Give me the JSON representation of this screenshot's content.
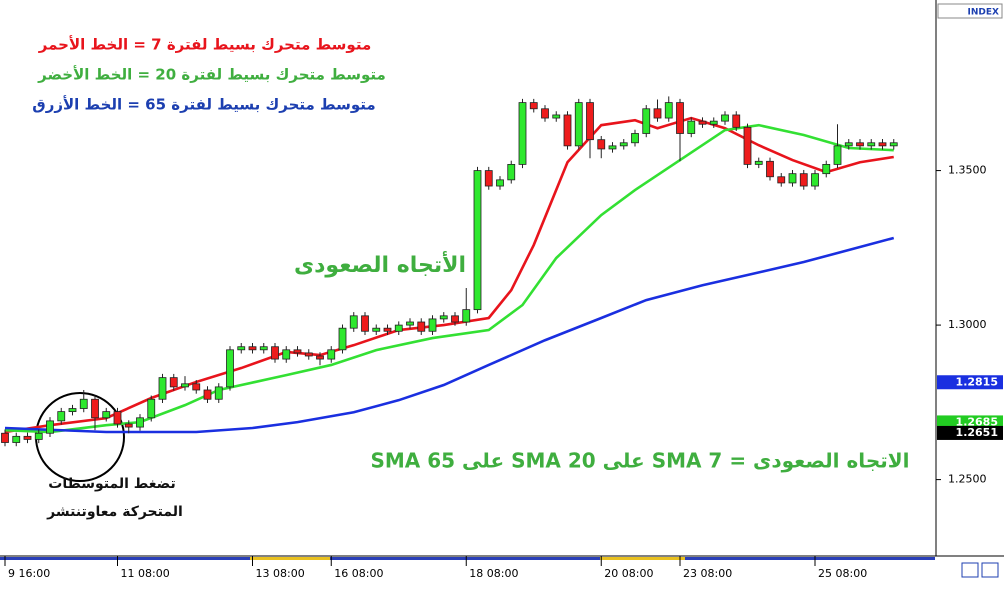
{
  "chart_data": {
    "type": "candlestick",
    "index_label": "INDEX",
    "annotations": [
      {
        "text": "متوسط متحرك بسيط لفترة 7 = الخط الأحمر",
        "color": "#e8141c"
      },
      {
        "text": "متوسط متحرك بسيط لفترة 20 = الخط الأخضر",
        "color": "#3fae3f"
      },
      {
        "text": "متوسط متحرك بسيط لفترة 65 = الخط الأزرق",
        "color": "#1c3fb0"
      },
      {
        "text": "الأتجاه الصعودى",
        "color": "#3fae3f"
      },
      {
        "text": "الاتجاه الصعودى = SMA 7 على SMA 20 على SMA 65",
        "color": "#3fae3f"
      },
      {
        "text": "تضغط المتوسطات",
        "color": "#111111"
      },
      {
        "text": "المتحركة معاوتنتشر",
        "color": "#111111"
      }
    ],
    "categories": [
      "9 16:00",
      null,
      null,
      null,
      null,
      null,
      null,
      null,
      null,
      null,
      "11 08:00",
      null,
      null,
      null,
      null,
      null,
      null,
      null,
      null,
      null,
      null,
      null,
      "13 08:00",
      null,
      null,
      null,
      null,
      null,
      null,
      "16 08:00",
      null,
      null,
      null,
      null,
      null,
      null,
      null,
      null,
      null,
      null,
      null,
      "18 08:00",
      null,
      null,
      null,
      null,
      null,
      null,
      null,
      null,
      null,
      null,
      null,
      "20 08:00",
      null,
      null,
      null,
      null,
      null,
      null,
      "23 08:00",
      null,
      null,
      null,
      null,
      null,
      null,
      null,
      null,
      null,
      null,
      null,
      "25 08:00",
      null,
      null,
      null,
      null,
      null,
      null,
      null
    ],
    "open": [
      1.265,
      1.262,
      1.264,
      1.263,
      1.265,
      1.269,
      1.272,
      1.273,
      1.276,
      1.27,
      1.272,
      1.268,
      1.267,
      1.27,
      1.276,
      1.283,
      1.28,
      1.281,
      1.279,
      1.276,
      1.28,
      1.292,
      1.293,
      1.292,
      1.293,
      1.289,
      1.292,
      1.291,
      1.29,
      1.289,
      1.292,
      1.299,
      1.303,
      1.298,
      1.299,
      1.298,
      1.3,
      1.301,
      1.298,
      1.302,
      1.303,
      1.301,
      1.305,
      1.35,
      1.345,
      1.347,
      1.352,
      1.372,
      1.37,
      1.367,
      1.368,
      1.358,
      1.372,
      1.36,
      1.357,
      1.358,
      1.359,
      1.362,
      1.37,
      1.367,
      1.372,
      1.362,
      1.366,
      1.365,
      1.366,
      1.368,
      1.364,
      1.352,
      1.353,
      1.348,
      1.346,
      1.349,
      1.345,
      1.349,
      1.352,
      1.358,
      1.359,
      1.358,
      1.359,
      1.358
    ],
    "high": [
      1.2662,
      1.2652,
      1.2652,
      1.2662,
      1.2702,
      1.2732,
      1.2742,
      1.279,
      1.2772,
      1.2732,
      1.2732,
      1.2692,
      1.2712,
      1.2772,
      1.2842,
      1.2842,
      1.2835,
      1.2822,
      1.2802,
      1.2812,
      1.2932,
      1.2942,
      1.2942,
      1.2942,
      1.2942,
      1.2932,
      1.2932,
      1.2922,
      1.2912,
      1.2932,
      1.3002,
      1.3042,
      1.3042,
      1.3002,
      1.3002,
      1.3012,
      1.3022,
      1.3022,
      1.3032,
      1.3042,
      1.3042,
      1.312,
      1.3512,
      1.3512,
      1.3482,
      1.3532,
      1.3732,
      1.3732,
      1.3712,
      1.3692,
      1.3692,
      1.3732,
      1.3732,
      1.3612,
      1.3592,
      1.3602,
      1.3632,
      1.3712,
      1.373,
      1.374,
      1.3732,
      1.3672,
      1.3672,
      1.3672,
      1.3692,
      1.3692,
      1.3652,
      1.3542,
      1.3542,
      1.3492,
      1.3502,
      1.3502,
      1.3502,
      1.3532,
      1.365,
      1.3602,
      1.3602,
      1.3602,
      1.3602,
      1.3602
    ],
    "low": [
      1.2608,
      1.2608,
      1.2618,
      1.2618,
      1.2638,
      1.2678,
      1.2708,
      1.2718,
      1.266,
      1.2688,
      1.2668,
      1.265,
      1.2658,
      1.2688,
      1.2748,
      1.2788,
      1.2788,
      1.2778,
      1.2748,
      1.2748,
      1.2788,
      1.2908,
      1.2908,
      1.2908,
      1.2878,
      1.2878,
      1.2898,
      1.2888,
      1.287,
      1.2878,
      1.2908,
      1.2978,
      1.2968,
      1.2968,
      1.2968,
      1.2968,
      1.2988,
      1.2968,
      1.2968,
      1.3008,
      1.2998,
      1.2998,
      1.3038,
      1.3438,
      1.3438,
      1.3458,
      1.3508,
      1.3688,
      1.3658,
      1.3658,
      1.3568,
      1.3568,
      1.354,
      1.354,
      1.3558,
      1.3568,
      1.3578,
      1.3608,
      1.3658,
      1.3658,
      1.353,
      1.3608,
      1.3638,
      1.3638,
      1.3648,
      1.3628,
      1.3508,
      1.3508,
      1.3468,
      1.3448,
      1.3448,
      1.3438,
      1.3438,
      1.3478,
      1.3508,
      1.3568,
      1.3568,
      1.3568,
      1.3568,
      1.3568
    ],
    "close": [
      1.262,
      1.264,
      1.263,
      1.265,
      1.269,
      1.272,
      1.273,
      1.276,
      1.27,
      1.272,
      1.268,
      1.267,
      1.27,
      1.276,
      1.283,
      1.28,
      1.281,
      1.279,
      1.276,
      1.28,
      1.292,
      1.293,
      1.292,
      1.293,
      1.289,
      1.292,
      1.291,
      1.29,
      1.289,
      1.292,
      1.299,
      1.303,
      1.298,
      1.299,
      1.298,
      1.3,
      1.301,
      1.298,
      1.302,
      1.303,
      1.301,
      1.305,
      1.35,
      1.345,
      1.347,
      1.352,
      1.372,
      1.37,
      1.367,
      1.368,
      1.358,
      1.372,
      1.36,
      1.357,
      1.358,
      1.359,
      1.362,
      1.37,
      1.367,
      1.372,
      1.362,
      1.366,
      1.365,
      1.366,
      1.368,
      1.364,
      1.352,
      1.353,
      1.348,
      1.346,
      1.349,
      1.345,
      1.349,
      1.352,
      1.358,
      1.359,
      1.358,
      1.359,
      1.358,
      1.359
    ],
    "up_color": "#2ee82e",
    "down_color": "#ee1c1c",
    "ylim": [
      1.2256,
      1.4052
    ],
    "yticks": [
      {
        "value": 1.35,
        "label": "1.3500"
      },
      {
        "value": 1.3,
        "label": "1.3000"
      },
      {
        "value": 1.25,
        "label": "1.2500"
      }
    ],
    "lines": [
      {
        "color": "#e8141c",
        "x": [
          0,
          4,
          9,
          13,
          17,
          21,
          25,
          28,
          31,
          35,
          39,
          43,
          45,
          47,
          50,
          53,
          56,
          58,
          61,
          64,
          67,
          70,
          73,
          76,
          79
        ],
        "values": [
          1.2654,
          1.2676,
          1.2699,
          1.2764,
          1.2816,
          1.2861,
          1.2913,
          1.2903,
          1.2935,
          1.2984,
          1.3,
          1.3023,
          1.3113,
          1.3259,
          1.3527,
          1.3647,
          1.3663,
          1.3637,
          1.367,
          1.3637,
          1.3582,
          1.3534,
          1.3495,
          1.3527,
          1.3544
        ]
      },
      {
        "color": "#33e033",
        "x": [
          0,
          4,
          9,
          12,
          16,
          19,
          25,
          29,
          33,
          38,
          43,
          46,
          49,
          53,
          56,
          60,
          64,
          67,
          71,
          75,
          79
        ],
        "values": [
          1.266,
          1.2654,
          1.2676,
          1.2686,
          1.2741,
          1.279,
          1.2838,
          1.2871,
          1.2919,
          1.2958,
          1.2984,
          1.3065,
          1.3217,
          1.3356,
          1.3437,
          1.3534,
          1.3631,
          1.3647,
          1.3615,
          1.3573,
          1.3566
        ]
      },
      {
        "color": "#1a2fe0",
        "x": [
          0,
          9,
          13,
          17,
          22,
          26,
          31,
          35,
          39,
          43,
          48,
          53,
          57,
          62,
          66,
          71,
          75,
          79
        ],
        "values": [
          1.2667,
          1.2654,
          1.2654,
          1.2654,
          1.2667,
          1.2686,
          1.2718,
          1.2757,
          1.2806,
          1.2871,
          1.2951,
          1.3023,
          1.3081,
          1.3129,
          1.3162,
          1.3204,
          1.3243,
          1.3282
        ]
      }
    ],
    "price_markers": [
      {
        "value": 1.2815,
        "label": "1.2815",
        "color": "#1a2fe0"
      },
      {
        "value": 1.2685,
        "label": "1.2685",
        "color": "#22cc22"
      },
      {
        "value": 1.2651,
        "label": "1.2651",
        "color": "#000000"
      }
    ]
  }
}
